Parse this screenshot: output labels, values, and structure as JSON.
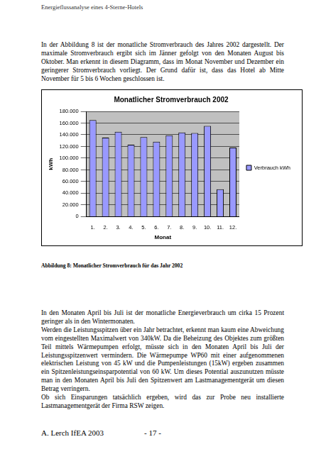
{
  "header": "Energieflussanalyse eines 4-Sterne-Hotels",
  "paragraphs_before": [
    "In der Abbildung 8 ist der monatliche Stromverbrauch des Jahres 2002 dargestellt. Der maximale Stromverbrauch ergibt sich im Jänner gefolgt von den Monaten August bis Oktober. Man erkennt in diesem Diagramm, dass im Monat November und Dezember ein geringerer Stromverbrauch vorliegt. Der Grund dafür ist, dass das Hotel ab Mitte November für 5 bis 6 Wochen geschlossen ist."
  ],
  "chart_data": {
    "type": "bar",
    "title": "Monatlicher Stromverbrauch 2002",
    "x_label": "Monat",
    "y_label": "kWh",
    "categories": [
      "1.",
      "2.",
      "3.",
      "4.",
      "5.",
      "6.",
      "7.",
      "8.",
      "9.",
      "10.",
      "11.",
      "12."
    ],
    "series": [
      {
        "name": "Verbrauch kWh",
        "color": "#9999ff",
        "values": [
          165000,
          135000,
          145000,
          123000,
          136000,
          128000,
          139000,
          144000,
          143000,
          155000,
          47000,
          118000
        ]
      }
    ],
    "ylim": [
      0,
      180000
    ],
    "yticks": [
      0,
      {
        "value": 20000,
        "label": "20.000"
      },
      {
        "value": 40000,
        "label": "40.000"
      },
      {
        "value": 60000,
        "label": "60.000"
      },
      {
        "value": 80000,
        "label": "80.000"
      },
      {
        "value": 100000,
        "label": "100.000"
      },
      {
        "value": 120000,
        "label": "120.000"
      },
      {
        "value": 140000,
        "label": "140.000"
      },
      {
        "value": 160000,
        "label": "160.000"
      },
      {
        "value": 180000,
        "label": "180.000"
      }
    ],
    "grid": true,
    "legend": "right"
  },
  "caption": "Abbildung 8: Monatlicher Stromverbrauch für das Jahr 2002",
  "paragraphs_after": [
    "In den Monaten April bis Juli ist der monatliche Energieverbrauch um cirka 15 Prozent geringer als in den Wintermonaten.",
    "Werden die Leistungsspitzen über ein Jahr betrachtet, erkennt man kaum eine Abweichung vom eingestellten Maximalwert von 340kW. Da die Beheizung des Objektes zum größten Teil mittels Wärmepumpen erfolgt, müsste sich in den Monaten April bis Juli der Leistungsspitzenwert vermindern. Die Wärmepumpe WP60 mit einer aufgenommenen elektrischen Leistung von 45 kW und die Pumpenleistungen (15kW) ergeben zusammen ein Spitzenleistungseinsparpotential von 60 kW. Um dieses Potential auszunutzen müsste man in den Monaten April bis Juli den Spitzenwert am Lastmanagementgerät um diesen Betrag verringern.",
    "Ob sich Einsparungen tatsächlich ergeben, wird das zur Probe neu installierte Lastmanagementgerät der Firma RSW zeigen."
  ],
  "footer": {
    "left": "A. Lerch IfEA 2003",
    "page": "- 17 -"
  }
}
